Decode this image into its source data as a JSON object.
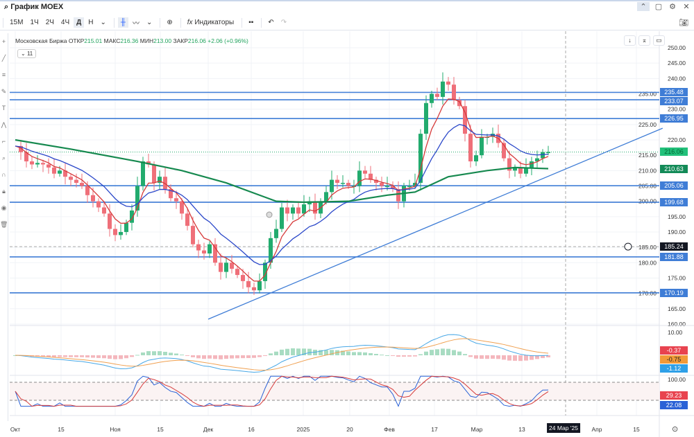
{
  "window": {
    "search_title": "График MOEX",
    "icons": [
      "chevron-up-icon",
      "maximize-icon",
      "gear-icon",
      "close-icon"
    ]
  },
  "toolbar": {
    "intervals": [
      "15M",
      "1Ч",
      "2Ч",
      "4Ч",
      "Д",
      "Н"
    ],
    "selected_interval": "Д",
    "indicators_label": "Индикаторы",
    "fx_label": "fx"
  },
  "legend": {
    "name": "Московская Биржа",
    "open_label": "ОТКР",
    "open": "215.01",
    "high_label": "МАКС",
    "high": "216.36",
    "low_label": "МИН",
    "low": "213.00",
    "close_label": "ЗАКР",
    "close": "216.06",
    "change": "+2.06 (+0.96%)",
    "collapsed_count": "11"
  },
  "colors": {
    "up": "#22ab6e",
    "down": "#ef6f79",
    "level": "#3f7dd6",
    "ma_fast": "#d63a3a",
    "ma_mid": "#2a47c9",
    "ma_long": "#16894f"
  },
  "chart_data": {
    "type": "candlestick",
    "symbol": "MOEX",
    "ylim": [
      160,
      250
    ],
    "y_ticks": [
      "250.00",
      "245.00",
      "240.00",
      "235.00",
      "230.00",
      "225.00",
      "220.00",
      "215.00",
      "210.00",
      "205.00",
      "200.00",
      "195.00",
      "190.00",
      "185.00",
      "180.00",
      "175.00",
      "170.00",
      "165.00",
      "160.00"
    ],
    "x_ticks": [
      "Окт",
      "15",
      "Ноя",
      "15",
      "Дек",
      "16",
      "2025",
      "20",
      "Фев",
      "17",
      "Мар",
      "13",
      "Апр",
      "15"
    ],
    "crosshair_date": "24 Мар '25",
    "crosshair_price": "185.24",
    "closes": [
      218,
      216,
      213,
      212,
      212.5,
      212,
      211,
      209,
      210,
      208,
      207,
      206,
      205,
      202,
      200,
      198,
      196,
      191,
      189,
      190,
      193,
      197,
      205,
      213,
      212,
      206,
      208,
      204,
      201,
      200,
      196,
      192,
      186,
      184,
      183,
      186,
      180,
      177,
      180,
      178,
      176,
      174,
      172,
      171,
      174,
      180,
      188,
      191,
      198,
      196,
      198,
      196,
      199,
      200,
      196,
      200,
      203,
      207,
      206,
      206,
      205,
      205,
      210,
      209,
      207,
      206,
      205,
      205,
      204,
      200,
      205,
      205,
      206,
      222,
      232,
      235,
      234,
      239,
      238,
      233,
      231,
      222,
      213,
      215,
      221,
      221,
      222,
      219,
      214,
      210,
      211,
      209,
      211,
      213,
      214,
      216,
      216.06
    ],
    "ma_long": [
      [
        0,
        220
      ],
      [
        10,
        217
      ],
      [
        22,
        213
      ],
      [
        30,
        210
      ],
      [
        38,
        206
      ],
      [
        47,
        200
      ],
      [
        52,
        199.7
      ],
      [
        60,
        200
      ],
      [
        67,
        202
      ],
      [
        72,
        203
      ],
      [
        78,
        208
      ],
      [
        85,
        210
      ],
      [
        90,
        211
      ],
      [
        96,
        210.63
      ]
    ],
    "horizontal_levels": [
      "235.48",
      "233.07",
      "226.95",
      "205.06",
      "199.68",
      "181.88",
      "170.19"
    ],
    "trendline": [
      [
        34.75,
        161.6
      ],
      [
        116.6,
        223.8
      ]
    ],
    "price_labels": {
      "last": "216.06",
      "ma_long": "210.63"
    },
    "macd": {
      "top_tick": "10.00",
      "labels": [
        "-0.37",
        "-0.75",
        "-1.12"
      ]
    },
    "stochastic": {
      "top_tick": "100.00",
      "labels": [
        "29.23",
        "22.08"
      ],
      "bands": [
        80,
        20
      ]
    }
  }
}
